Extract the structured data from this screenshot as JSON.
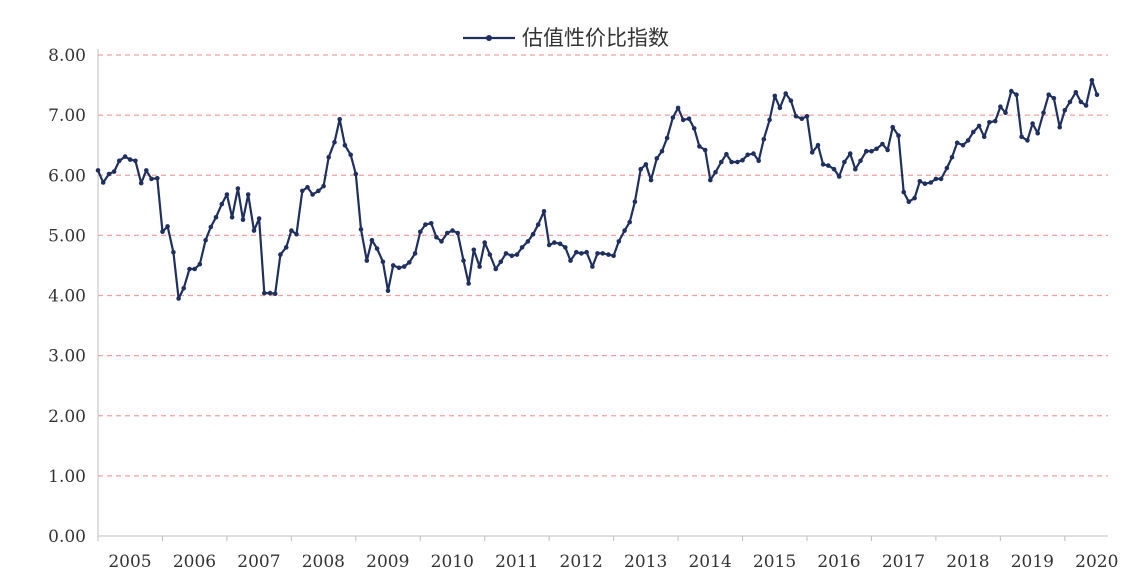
{
  "chart_data": {
    "type": "line",
    "title": "",
    "xlabel": "",
    "ylabel": "",
    "legend_position": "top-center",
    "grid": "horizontal dashed",
    "ylim": [
      0,
      8
    ],
    "xlim": [
      2005.0,
      2020.67
    ],
    "y_ticks": [
      "0.00",
      "1.00",
      "2.00",
      "3.00",
      "4.00",
      "5.00",
      "6.00",
      "7.00",
      "8.00"
    ],
    "x_ticks": [
      "2005",
      "2006",
      "2007",
      "2008",
      "2009",
      "2010",
      "2011",
      "2012",
      "2013",
      "2014",
      "2015",
      "2016",
      "2017",
      "2018",
      "2019",
      "2020"
    ],
    "series": [
      {
        "name": "估值性价比指数",
        "color": "#1f2f5e",
        "gridline_color": "#f2a0a0",
        "points": [
          [
            2005.0,
            6.08
          ],
          [
            2005.08,
            5.88
          ],
          [
            2005.17,
            6.02
          ],
          [
            2005.25,
            6.06
          ],
          [
            2005.33,
            6.24
          ],
          [
            2005.42,
            6.31
          ],
          [
            2005.5,
            6.26
          ],
          [
            2005.58,
            6.24
          ],
          [
            2005.67,
            5.87
          ],
          [
            2005.75,
            6.08
          ],
          [
            2005.83,
            5.94
          ],
          [
            2005.92,
            5.95
          ],
          [
            2006.0,
            5.06
          ],
          [
            2006.08,
            5.15
          ],
          [
            2006.17,
            4.72
          ],
          [
            2006.25,
            3.95
          ],
          [
            2006.33,
            4.12
          ],
          [
            2006.42,
            4.44
          ],
          [
            2006.5,
            4.44
          ],
          [
            2006.58,
            4.52
          ],
          [
            2006.67,
            4.92
          ],
          [
            2006.75,
            5.14
          ],
          [
            2006.83,
            5.3
          ],
          [
            2006.92,
            5.52
          ],
          [
            2007.0,
            5.68
          ],
          [
            2007.08,
            5.3
          ],
          [
            2007.17,
            5.78
          ],
          [
            2007.25,
            5.26
          ],
          [
            2007.33,
            5.68
          ],
          [
            2007.42,
            5.08
          ],
          [
            2007.5,
            5.28
          ],
          [
            2007.58,
            4.04
          ],
          [
            2007.67,
            4.04
          ],
          [
            2007.75,
            4.03
          ],
          [
            2007.83,
            4.68
          ],
          [
            2007.92,
            4.8
          ],
          [
            2008.0,
            5.08
          ],
          [
            2008.08,
            5.02
          ],
          [
            2008.17,
            5.74
          ],
          [
            2008.25,
            5.8
          ],
          [
            2008.33,
            5.68
          ],
          [
            2008.42,
            5.74
          ],
          [
            2008.5,
            5.82
          ],
          [
            2008.58,
            6.3
          ],
          [
            2008.67,
            6.55
          ],
          [
            2008.75,
            6.93
          ],
          [
            2008.83,
            6.5
          ],
          [
            2008.92,
            6.34
          ],
          [
            2009.0,
            6.02
          ],
          [
            2009.08,
            5.1
          ],
          [
            2009.17,
            4.58
          ],
          [
            2009.25,
            4.92
          ],
          [
            2009.33,
            4.78
          ],
          [
            2009.42,
            4.56
          ],
          [
            2009.5,
            4.08
          ],
          [
            2009.58,
            4.5
          ],
          [
            2009.67,
            4.46
          ],
          [
            2009.75,
            4.48
          ],
          [
            2009.83,
            4.55
          ],
          [
            2009.92,
            4.7
          ],
          [
            2010.0,
            5.06
          ],
          [
            2010.08,
            5.18
          ],
          [
            2010.17,
            5.2
          ],
          [
            2010.25,
            4.97
          ],
          [
            2010.33,
            4.9
          ],
          [
            2010.42,
            5.04
          ],
          [
            2010.5,
            5.08
          ],
          [
            2010.58,
            5.04
          ],
          [
            2010.67,
            4.58
          ],
          [
            2010.75,
            4.2
          ],
          [
            2010.83,
            4.76
          ],
          [
            2010.92,
            4.48
          ],
          [
            2011.0,
            4.88
          ],
          [
            2011.08,
            4.68
          ],
          [
            2011.17,
            4.44
          ],
          [
            2011.25,
            4.56
          ],
          [
            2011.33,
            4.7
          ],
          [
            2011.42,
            4.66
          ],
          [
            2011.5,
            4.68
          ],
          [
            2011.58,
            4.8
          ],
          [
            2011.67,
            4.9
          ],
          [
            2011.75,
            5.02
          ],
          [
            2011.83,
            5.18
          ],
          [
            2011.92,
            5.4
          ],
          [
            2012.0,
            4.84
          ],
          [
            2012.08,
            4.88
          ],
          [
            2012.17,
            4.86
          ],
          [
            2012.25,
            4.8
          ],
          [
            2012.33,
            4.58
          ],
          [
            2012.42,
            4.72
          ],
          [
            2012.5,
            4.7
          ],
          [
            2012.58,
            4.72
          ],
          [
            2012.67,
            4.48
          ],
          [
            2012.75,
            4.7
          ],
          [
            2012.83,
            4.7
          ],
          [
            2012.92,
            4.68
          ],
          [
            2013.0,
            4.66
          ],
          [
            2013.08,
            4.9
          ],
          [
            2013.17,
            5.08
          ],
          [
            2013.25,
            5.22
          ],
          [
            2013.33,
            5.56
          ],
          [
            2013.42,
            6.1
          ],
          [
            2013.5,
            6.18
          ],
          [
            2013.58,
            5.92
          ],
          [
            2013.67,
            6.28
          ],
          [
            2013.75,
            6.4
          ],
          [
            2013.83,
            6.62
          ],
          [
            2013.92,
            6.96
          ],
          [
            2014.0,
            7.12
          ],
          [
            2014.08,
            6.92
          ],
          [
            2014.17,
            6.94
          ],
          [
            2014.25,
            6.78
          ],
          [
            2014.33,
            6.48
          ],
          [
            2014.42,
            6.42
          ],
          [
            2014.5,
            5.92
          ],
          [
            2014.58,
            6.05
          ],
          [
            2014.67,
            6.22
          ],
          [
            2014.75,
            6.35
          ],
          [
            2014.83,
            6.22
          ],
          [
            2014.92,
            6.22
          ],
          [
            2015.0,
            6.25
          ],
          [
            2015.08,
            6.34
          ],
          [
            2015.17,
            6.36
          ],
          [
            2015.25,
            6.24
          ],
          [
            2015.33,
            6.6
          ],
          [
            2015.42,
            6.92
          ],
          [
            2015.5,
            7.32
          ],
          [
            2015.58,
            7.12
          ],
          [
            2015.67,
            7.36
          ],
          [
            2015.75,
            7.24
          ],
          [
            2015.83,
            6.98
          ],
          [
            2015.92,
            6.94
          ],
          [
            2016.0,
            6.98
          ],
          [
            2016.08,
            6.38
          ],
          [
            2016.17,
            6.5
          ],
          [
            2016.25,
            6.18
          ],
          [
            2016.33,
            6.16
          ],
          [
            2016.42,
            6.1
          ],
          [
            2016.5,
            5.98
          ],
          [
            2016.58,
            6.22
          ],
          [
            2016.67,
            6.36
          ],
          [
            2016.75,
            6.1
          ],
          [
            2016.83,
            6.24
          ],
          [
            2016.92,
            6.4
          ],
          [
            2017.0,
            6.4
          ],
          [
            2017.08,
            6.44
          ],
          [
            2017.17,
            6.52
          ],
          [
            2017.25,
            6.42
          ],
          [
            2017.33,
            6.8
          ],
          [
            2017.42,
            6.66
          ],
          [
            2017.5,
            5.72
          ],
          [
            2017.58,
            5.56
          ],
          [
            2017.67,
            5.62
          ],
          [
            2017.75,
            5.9
          ],
          [
            2017.83,
            5.86
          ],
          [
            2017.92,
            5.88
          ],
          [
            2018.0,
            5.94
          ],
          [
            2018.08,
            5.94
          ],
          [
            2018.17,
            6.12
          ],
          [
            2018.25,
            6.3
          ],
          [
            2018.33,
            6.54
          ],
          [
            2018.42,
            6.5
          ],
          [
            2018.5,
            6.58
          ],
          [
            2018.58,
            6.72
          ],
          [
            2018.67,
            6.82
          ],
          [
            2018.75,
            6.64
          ],
          [
            2018.83,
            6.88
          ],
          [
            2018.92,
            6.9
          ],
          [
            2019.0,
            7.14
          ],
          [
            2019.08,
            7.04
          ],
          [
            2019.17,
            7.4
          ],
          [
            2019.25,
            7.34
          ],
          [
            2019.33,
            6.64
          ],
          [
            2019.42,
            6.58
          ],
          [
            2019.5,
            6.86
          ],
          [
            2019.58,
            6.7
          ],
          [
            2019.67,
            7.04
          ],
          [
            2019.75,
            7.34
          ],
          [
            2019.83,
            7.28
          ],
          [
            2019.92,
            6.8
          ],
          [
            2020.0,
            7.08
          ],
          [
            2020.08,
            7.22
          ],
          [
            2020.17,
            7.38
          ],
          [
            2020.25,
            7.22
          ],
          [
            2020.33,
            7.16
          ],
          [
            2020.42,
            7.58
          ],
          [
            2020.5,
            7.34
          ]
        ]
      }
    ]
  }
}
